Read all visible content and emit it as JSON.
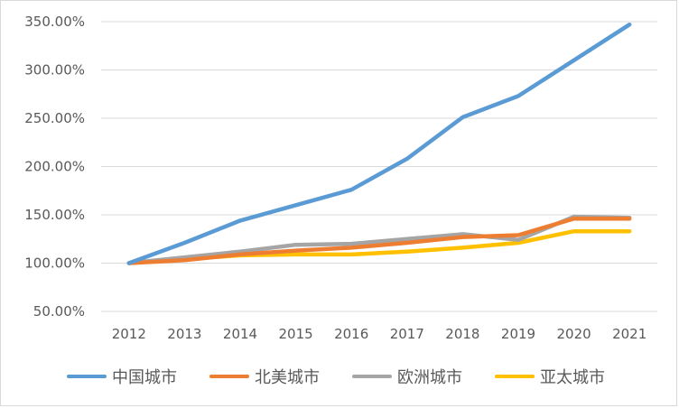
{
  "chart_data": {
    "type": "line",
    "title": "",
    "xlabel": "",
    "ylabel": "",
    "categories": [
      "2012",
      "2013",
      "2014",
      "2015",
      "2016",
      "2017",
      "2018",
      "2019",
      "2020",
      "2021"
    ],
    "y_ticks": [
      "50.00%",
      "100.00%",
      "150.00%",
      "200.00%",
      "250.00%",
      "300.00%",
      "350.00%"
    ],
    "ylim": [
      50,
      350
    ],
    "y_unit": "%",
    "grid": "horizontal",
    "legend_position": "bottom",
    "series": [
      {
        "name": "中国城市",
        "color": "#5b9bd5",
        "values": [
          100,
          121,
          144,
          160,
          176,
          208,
          251,
          273,
          310,
          347
        ]
      },
      {
        "name": "北美城市",
        "color": "#ed7d31",
        "values": [
          100,
          103,
          109,
          113,
          116,
          121,
          127,
          129,
          146,
          146
        ]
      },
      {
        "name": "欧洲城市",
        "color": "#a5a5a5",
        "values": [
          100,
          106,
          112,
          119,
          120,
          125,
          130,
          124,
          148,
          147
        ]
      },
      {
        "name": "亚太城市",
        "color": "#ffc000",
        "values": [
          100,
          104,
          108,
          109,
          109,
          112,
          116,
          121,
          133,
          133
        ]
      }
    ]
  }
}
